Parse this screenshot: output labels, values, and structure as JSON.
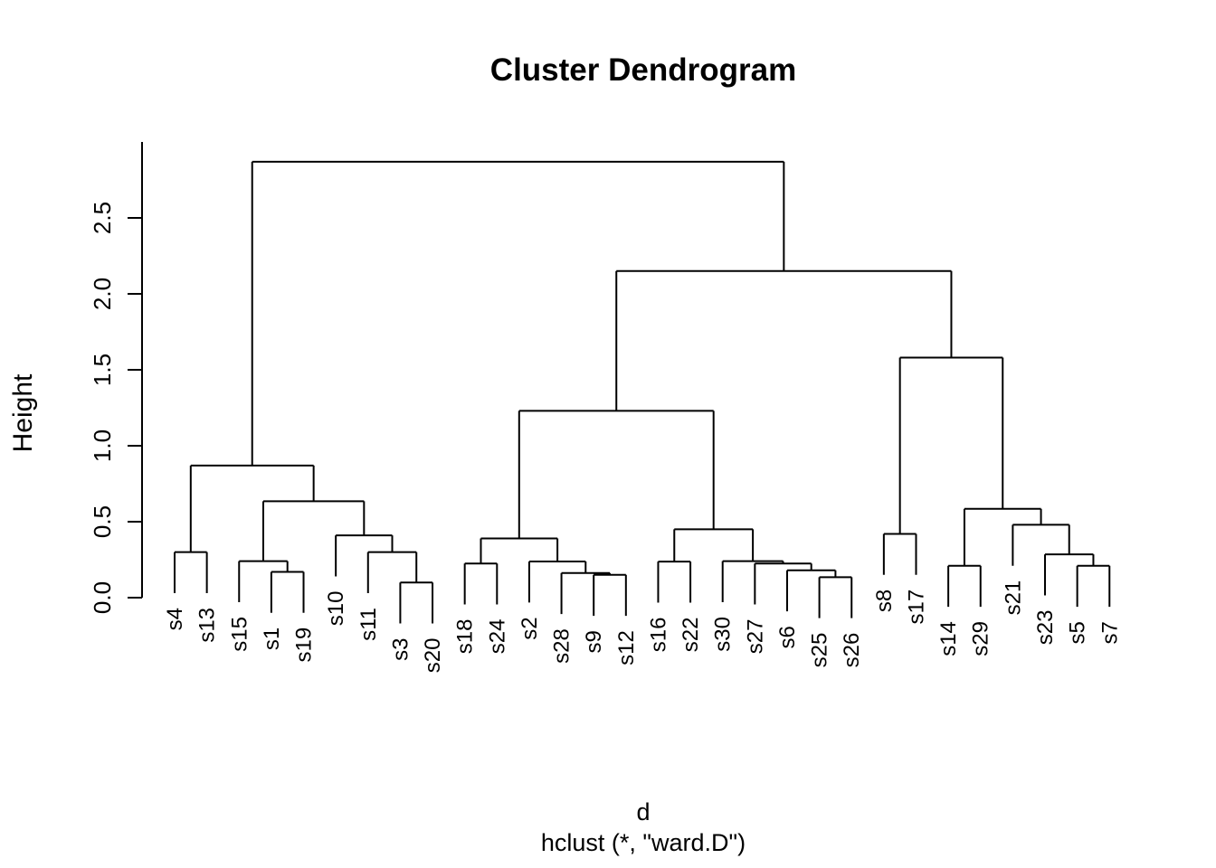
{
  "chart_data": {
    "type": "dendrogram",
    "title": "Cluster Dendrogram",
    "ylabel": "Height",
    "xlabel_line1": "d",
    "xlabel_line2": "hclust (*, \"ward.D\")",
    "yticks": [
      "0.0",
      "0.5",
      "1.0",
      "1.5",
      "2.0",
      "2.5"
    ],
    "ylim": [
      0,
      3.0
    ],
    "hang": 0.27,
    "grid": false,
    "line_color": "#000000",
    "background_color": "#ffffff",
    "leaf_order": [
      "s4",
      "s13",
      "s15",
      "s1",
      "s19",
      "s10",
      "s11",
      "s3",
      "s20",
      "s18",
      "s24",
      "s2",
      "s28",
      "s9",
      "s12",
      "s16",
      "s22",
      "s30",
      "s27",
      "s6",
      "s25",
      "s26",
      "s8",
      "s17",
      "s14",
      "s29",
      "s21",
      "s23",
      "s5",
      "s7"
    ],
    "tree": {
      "h": 2.87,
      "c": [
        {
          "h": 0.87,
          "c": [
            {
              "h": 0.3,
              "c": [
                "s4",
                "s13"
              ]
            },
            {
              "h": 0.635,
              "c": [
                {
                  "h": 0.24,
                  "c": [
                    "s15",
                    {
                      "h": 0.17,
                      "c": [
                        "s1",
                        "s19"
                      ]
                    }
                  ]
                },
                {
                  "h": 0.41,
                  "c": [
                    "s10",
                    {
                      "h": 0.3,
                      "c": [
                        "s11",
                        {
                          "h": 0.1,
                          "c": [
                            "s3",
                            "s20"
                          ]
                        }
                      ]
                    }
                  ]
                }
              ]
            }
          ]
        },
        {
          "h": 2.15,
          "c": [
            {
              "h": 1.23,
              "c": [
                {
                  "h": 0.39,
                  "c": [
                    {
                      "h": 0.225,
                      "c": [
                        "s18",
                        "s24"
                      ]
                    },
                    {
                      "h": 0.238,
                      "c": [
                        "s2",
                        {
                          "h": 0.162,
                          "c": [
                            "s28",
                            {
                              "h": 0.15,
                              "c": [
                                "s9",
                                "s12"
                              ]
                            }
                          ]
                        }
                      ]
                    }
                  ]
                },
                {
                  "h": 0.45,
                  "c": [
                    {
                      "h": 0.237,
                      "c": [
                        "s16",
                        "s22"
                      ]
                    },
                    {
                      "h": 0.24,
                      "c": [
                        "s30",
                        {
                          "h": 0.225,
                          "c": [
                            "s27",
                            {
                              "h": 0.18,
                              "c": [
                                "s6",
                                {
                                  "h": 0.135,
                                  "c": [
                                    "s25",
                                    "s26"
                                  ]
                                }
                              ]
                            }
                          ]
                        }
                      ]
                    }
                  ]
                }
              ]
            },
            {
              "h": 1.58,
              "c": [
                {
                  "h": 0.42,
                  "c": [
                    "s8",
                    "s17"
                  ]
                },
                {
                  "h": 0.585,
                  "c": [
                    {
                      "h": 0.21,
                      "c": [
                        "s14",
                        "s29"
                      ]
                    },
                    {
                      "h": 0.48,
                      "c": [
                        "s21",
                        {
                          "h": 0.285,
                          "c": [
                            "s23",
                            {
                              "h": 0.21,
                              "c": [
                                "s5",
                                "s7"
                              ]
                            }
                          ]
                        }
                      ]
                    }
                  ]
                }
              ]
            }
          ]
        }
      ]
    }
  }
}
